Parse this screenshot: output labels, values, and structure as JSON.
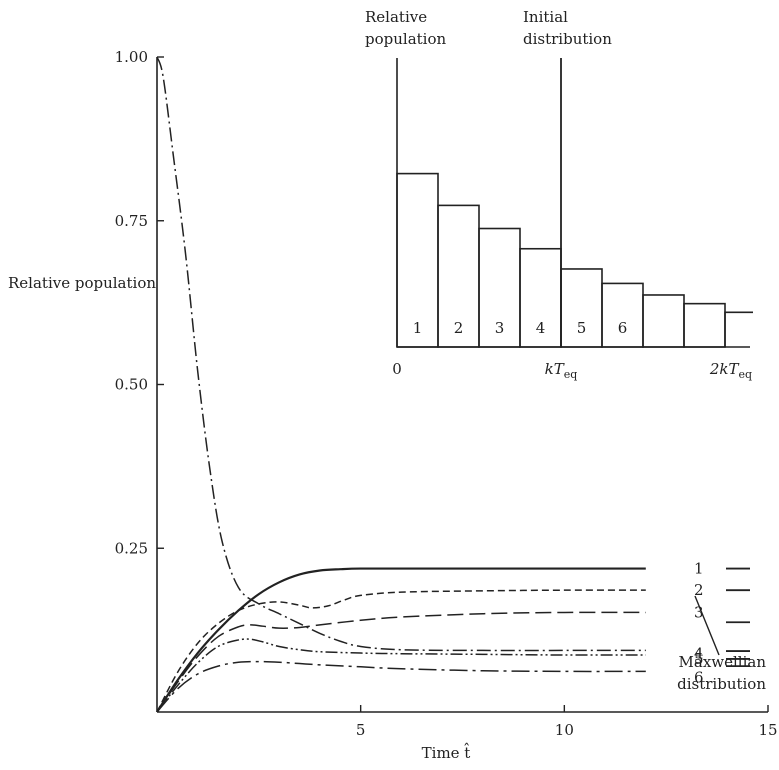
{
  "chart_data": [
    {
      "type": "line",
      "ylabel": "Relative population",
      "xlabel": "Time t̂",
      "xlim": [
        0,
        15
      ],
      "ylim": [
        0,
        1.0
      ],
      "x_ticks": [
        {
          "value": 5,
          "label": "5"
        },
        {
          "value": 10,
          "label": "10"
        },
        {
          "value": 15,
          "label": "15"
        }
      ],
      "y_ticks": [
        {
          "value": 0.25,
          "label": "0.25"
        },
        {
          "value": 0.5,
          "label": "0.50"
        },
        {
          "value": 0.75,
          "label": "0.75"
        },
        {
          "value": 1.0,
          "label": "1.00"
        }
      ],
      "series": [
        {
          "label": "1",
          "style": "solid",
          "x": [
            0,
            0.5,
            1,
            1.5,
            2,
            2.5,
            3,
            3.5,
            4,
            4.5,
            5,
            6,
            8,
            10,
            12
          ],
          "y": [
            0,
            0.048,
            0.09,
            0.125,
            0.155,
            0.18,
            0.198,
            0.21,
            0.216,
            0.218,
            0.219,
            0.219,
            0.219,
            0.219,
            0.219
          ]
        },
        {
          "label": "2",
          "style": "dashed-short",
          "x": [
            0,
            0.5,
            1,
            1.5,
            2,
            2.5,
            3,
            3.5,
            3.8,
            4.2,
            4.6,
            5,
            6,
            8,
            10,
            12
          ],
          "y": [
            0,
            0.06,
            0.105,
            0.135,
            0.155,
            0.165,
            0.168,
            0.163,
            0.159,
            0.162,
            0.171,
            0.178,
            0.183,
            0.185,
            0.186,
            0.186
          ]
        },
        {
          "label": "3",
          "style": "dashed-long",
          "x": [
            0,
            0.5,
            1,
            1.5,
            2,
            2.3,
            2.6,
            3,
            3.5,
            4,
            5,
            6,
            8,
            10,
            12
          ],
          "y": [
            0,
            0.045,
            0.085,
            0.115,
            0.13,
            0.133,
            0.131,
            0.128,
            0.129,
            0.133,
            0.14,
            0.145,
            0.15,
            0.152,
            0.152
          ]
        },
        {
          "label": "4",
          "style": "dash-dot",
          "x": [
            0,
            0.15,
            0.4,
            0.7,
            1,
            1.3,
            1.6,
            2,
            2.5,
            3,
            3.5,
            4,
            4.5,
            5,
            6,
            8,
            10,
            12
          ],
          "y": [
            1.0,
            0.97,
            0.85,
            0.7,
            0.52,
            0.37,
            0.26,
            0.19,
            0.165,
            0.15,
            0.135,
            0.12,
            0.108,
            0.1,
            0.095,
            0.094,
            0.094,
            0.094
          ]
        },
        {
          "label": "5",
          "style": "dash-dot-dot",
          "x": [
            0,
            0.5,
            1,
            1.5,
            2,
            2.3,
            2.6,
            3,
            3.5,
            4,
            5,
            6,
            8,
            10,
            12
          ],
          "y": [
            0,
            0.04,
            0.075,
            0.1,
            0.11,
            0.111,
            0.107,
            0.1,
            0.095,
            0.092,
            0.09,
            0.089,
            0.088,
            0.087,
            0.087
          ]
        },
        {
          "label": "6",
          "style": "dash-dot-long",
          "x": [
            0,
            0.5,
            1,
            1.5,
            2,
            2.5,
            3,
            3.5,
            4,
            5,
            6,
            8,
            10,
            12
          ],
          "y": [
            0,
            0.035,
            0.058,
            0.07,
            0.076,
            0.077,
            0.076,
            0.074,
            0.072,
            0.069,
            0.066,
            0.063,
            0.062,
            0.062
          ]
        }
      ],
      "maxwellian_distribution": {
        "label_line1": "Maxwellian",
        "label_line2": "distribution",
        "values": [
          0.219,
          0.186,
          0.137,
          0.093,
          0.081,
          0.07
        ]
      }
    },
    {
      "type": "bar",
      "ylabel_line1": "Relative",
      "ylabel_line2": "population",
      "marker_label_line1": "Initial",
      "marker_label_line2": "distribution",
      "categories": [
        "1",
        "2",
        "3",
        "4",
        "5",
        "6",
        "",
        "",
        ""
      ],
      "values": [
        0.6,
        0.49,
        0.41,
        0.34,
        0.27,
        0.22,
        0.18,
        0.15,
        0.12
      ],
      "ylim": [
        0,
        1.0
      ],
      "x_ticks": [
        {
          "pos": 0,
          "label": "0"
        },
        {
          "pos": 4,
          "label": "kT",
          "sub": "eq"
        },
        {
          "pos": 8,
          "label": "2kT",
          "sub": "eq"
        }
      ],
      "initial_distribution_at": 4
    }
  ]
}
